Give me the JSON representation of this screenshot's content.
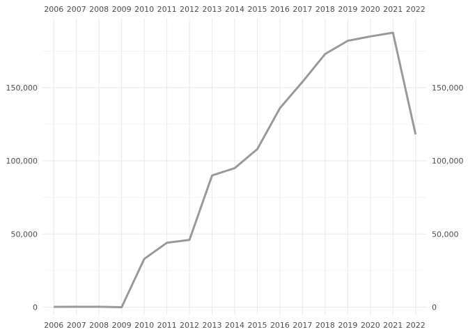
{
  "chart_data": {
    "type": "line",
    "title": "",
    "xlabel": "",
    "ylabel": "",
    "x": [
      2006,
      2007,
      2008,
      2009,
      2010,
      2011,
      2012,
      2013,
      2014,
      2015,
      2016,
      2017,
      2018,
      2019,
      2020,
      2021,
      2022
    ],
    "series": [
      {
        "color": "#999999",
        "values": [
          200,
          300,
          300,
          0,
          33000,
          44000,
          46000,
          90000,
          95000,
          108000,
          136000,
          154000,
          173000,
          182000,
          185000,
          187500,
          118000
        ]
      }
    ],
    "ylim": [
      -5000,
      197500
    ],
    "yticks": [
      0,
      50000,
      100000,
      150000
    ],
    "ytick_labels": [
      "0",
      "50,000",
      "100,000",
      "150,000"
    ],
    "xtick_labels": [
      "2006",
      "2007",
      "2008",
      "2009",
      "2010",
      "2011",
      "2012",
      "2013",
      "2014",
      "2015",
      "2016",
      "2017",
      "2018",
      "2019",
      "2020",
      "2021",
      "2022"
    ],
    "x_axis_labels_top": true,
    "x_axis_labels_bottom": true,
    "y_axis_labels_left": true,
    "y_axis_labels_right": true,
    "grid": true,
    "legend": "none"
  }
}
